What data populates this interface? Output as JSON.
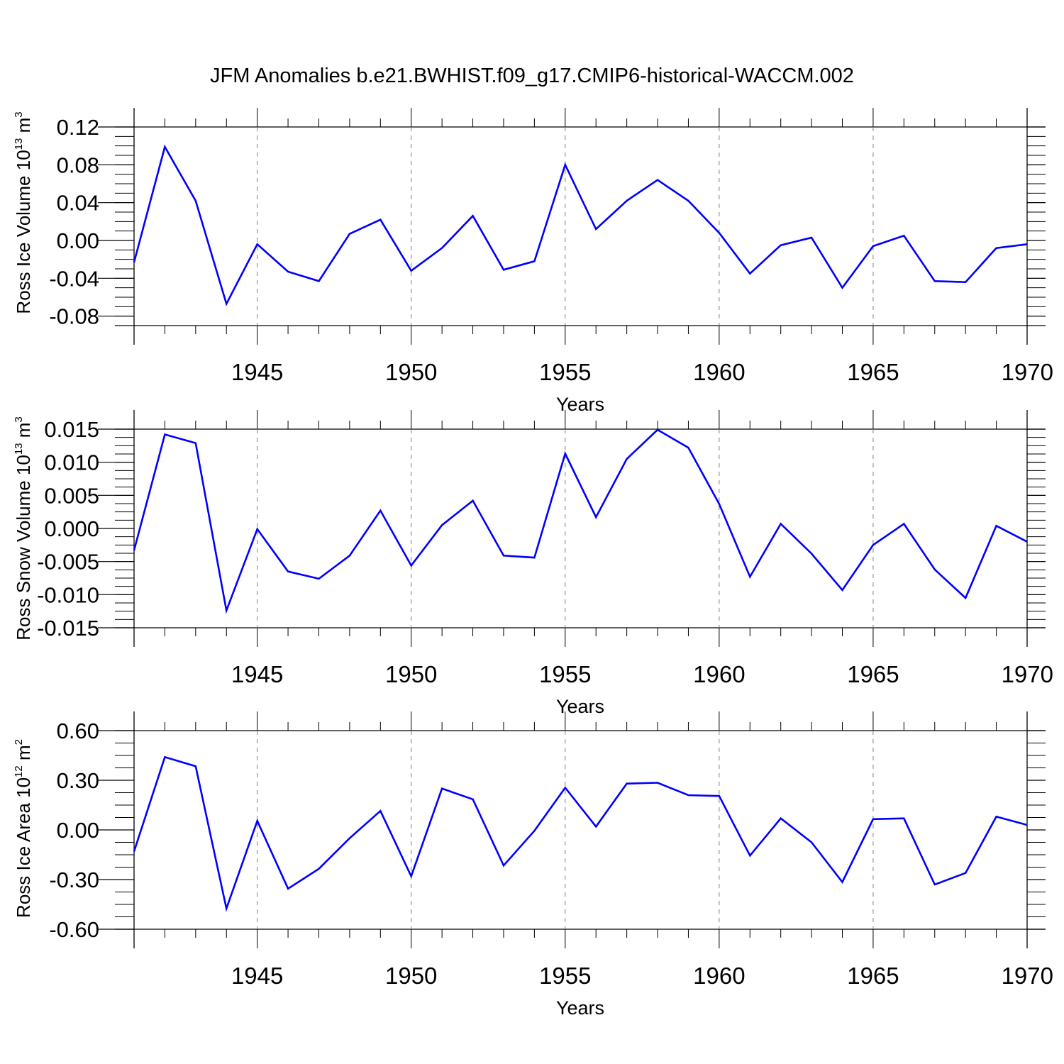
{
  "title": "JFM Anomalies b.e21.BWHIST.f09_g17.CMIP6-historical-WACCM.002",
  "colors": {
    "line": "#0000ff",
    "axis": "#000000",
    "grid": "#808080"
  },
  "chart_data": [
    {
      "type": "line",
      "ylabel": {
        "prefix": "Ross Ice Volume 10",
        "exp": "13",
        "unit": " m",
        "unit_exp": "3"
      },
      "xlabel": "Years",
      "xlim": [
        1941,
        1970
      ],
      "ylim": [
        -0.09,
        0.12
      ],
      "yticks": [
        0.12,
        0.08,
        0.04,
        0.0,
        -0.04,
        -0.08
      ],
      "ytick_labels": [
        "0.12",
        "0.08",
        "0.04",
        "0.00",
        "-0.04",
        "-0.08"
      ],
      "xticks": [
        1945,
        1950,
        1955,
        1960,
        1965,
        1970
      ],
      "xtick_labels": [
        "1945",
        "1950",
        "1955",
        "1960",
        "1965",
        "1970"
      ],
      "grid": "vertical dashed at labeled years",
      "x": [
        1941,
        1942,
        1943,
        1944,
        1945,
        1946,
        1947,
        1948,
        1949,
        1950,
        1951,
        1952,
        1953,
        1954,
        1955,
        1956,
        1957,
        1958,
        1959,
        1960,
        1961,
        1962,
        1963,
        1964,
        1965,
        1966,
        1967,
        1968,
        1969,
        1970
      ],
      "y": [
        -0.023,
        0.099,
        0.042,
        -0.067,
        -0.004,
        -0.033,
        -0.043,
        0.007,
        0.022,
        -0.032,
        -0.008,
        0.026,
        -0.031,
        -0.022,
        0.08,
        0.012,
        0.042,
        0.064,
        0.042,
        0.008,
        -0.035,
        -0.005,
        0.003,
        -0.05,
        -0.006,
        0.005,
        -0.043,
        -0.044,
        -0.008,
        -0.004
      ]
    },
    {
      "type": "line",
      "ylabel": {
        "prefix": "Ross Snow Volume 10",
        "exp": "13",
        "unit": " m",
        "unit_exp": "3"
      },
      "xlabel": "Years",
      "xlim": [
        1941,
        1970
      ],
      "ylim": [
        -0.015,
        0.015
      ],
      "yticks": [
        0.015,
        0.01,
        0.005,
        0.0,
        -0.005,
        -0.01,
        -0.015
      ],
      "ytick_labels": [
        "0.015",
        "0.010",
        "0.005",
        "0.000",
        "-0.005",
        "-0.010",
        "-0.015"
      ],
      "xticks": [
        1945,
        1950,
        1955,
        1960,
        1965,
        1970
      ],
      "xtick_labels": [
        "1945",
        "1950",
        "1955",
        "1960",
        "1965",
        "1970"
      ],
      "grid": "vertical dashed at labeled years",
      "x": [
        1941,
        1942,
        1943,
        1944,
        1945,
        1946,
        1947,
        1948,
        1949,
        1950,
        1951,
        1952,
        1953,
        1954,
        1955,
        1956,
        1957,
        1958,
        1959,
        1960,
        1961,
        1962,
        1963,
        1964,
        1965,
        1966,
        1967,
        1968,
        1969,
        1970
      ],
      "y": [
        -0.0033,
        0.0142,
        0.0129,
        -0.0124,
        -0.0001,
        -0.0065,
        -0.0076,
        -0.0041,
        0.0027,
        -0.0056,
        0.0005,
        0.0042,
        -0.0041,
        -0.0044,
        0.0113,
        0.0017,
        0.0105,
        0.0149,
        0.0122,
        0.0037,
        -0.0073,
        0.0007,
        -0.0038,
        -0.0093,
        -0.0025,
        0.0007,
        -0.0062,
        -0.0105,
        0.0004,
        -0.002
      ]
    },
    {
      "type": "line",
      "ylabel": {
        "prefix": "Ross Ice Area 10",
        "exp": "12",
        "unit": " m",
        "unit_exp": "2"
      },
      "xlabel": "Years",
      "xlim": [
        1941,
        1970
      ],
      "ylim": [
        -0.6,
        0.6
      ],
      "yticks": [
        0.6,
        0.3,
        0.0,
        -0.3,
        -0.6
      ],
      "ytick_labels": [
        "0.60",
        "0.30",
        "0.00",
        "-0.30",
        "-0.60"
      ],
      "xticks": [
        1945,
        1950,
        1955,
        1960,
        1965,
        1970
      ],
      "xtick_labels": [
        "1945",
        "1950",
        "1955",
        "1960",
        "1965",
        "1970"
      ],
      "grid": "vertical dashed at labeled years",
      "x": [
        1941,
        1942,
        1943,
        1944,
        1945,
        1946,
        1947,
        1948,
        1949,
        1950,
        1951,
        1952,
        1953,
        1954,
        1955,
        1956,
        1957,
        1958,
        1959,
        1960,
        1961,
        1962,
        1963,
        1964,
        1965,
        1966,
        1967,
        1968,
        1969,
        1970
      ],
      "y": [
        -0.13,
        0.44,
        0.385,
        -0.475,
        0.055,
        -0.355,
        -0.235,
        -0.05,
        0.115,
        -0.28,
        0.25,
        0.185,
        -0.215,
        -0.005,
        0.255,
        0.02,
        0.28,
        0.285,
        0.21,
        0.205,
        -0.155,
        0.07,
        -0.075,
        -0.315,
        0.065,
        0.07,
        -0.33,
        -0.26,
        0.08,
        0.03
      ]
    }
  ]
}
